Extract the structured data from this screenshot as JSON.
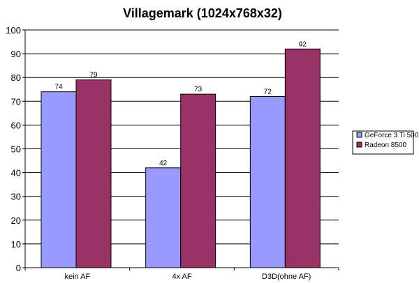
{
  "chart_data": {
    "type": "bar",
    "title": "Villagemark (1024x768x32)",
    "xlabel": "",
    "ylabel": "",
    "categories": [
      "kein AF",
      "4x AF",
      "D3D(ohne AF)"
    ],
    "series": [
      {
        "name": "GeForce 3 Ti 500",
        "values": [
          74,
          42,
          72
        ],
        "color": "#9999ff"
      },
      {
        "name": "Radeon 8500",
        "values": [
          79,
          73,
          92
        ],
        "color": "#993366"
      }
    ],
    "ylim": [
      0,
      100
    ],
    "yticks": [
      0,
      10,
      20,
      30,
      40,
      50,
      60,
      70,
      80,
      90,
      100
    ],
    "grid": true,
    "legend": "right",
    "data_labels": true
  }
}
